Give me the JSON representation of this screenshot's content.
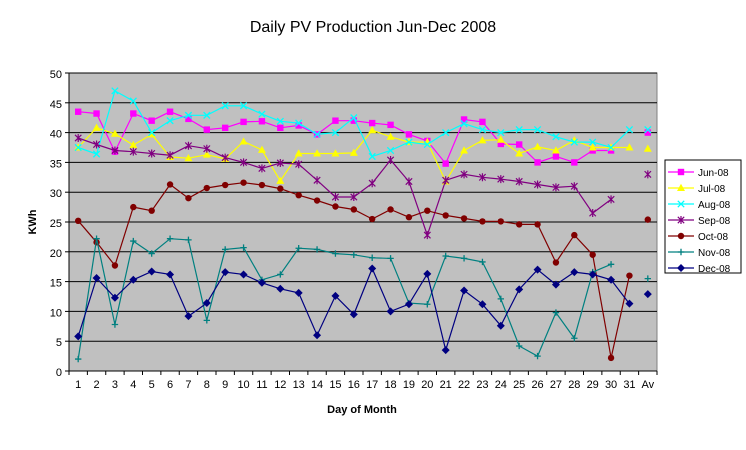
{
  "chart_data": {
    "type": "line",
    "title": "Daily PV Production Jun-Dec 2008",
    "xlabel": "Day of Month",
    "ylabel": "KWh",
    "categories": [
      "1",
      "2",
      "3",
      "4",
      "5",
      "6",
      "7",
      "8",
      "9",
      "10",
      "11",
      "12",
      "13",
      "14",
      "15",
      "16",
      "17",
      "18",
      "19",
      "20",
      "21",
      "22",
      "23",
      "24",
      "25",
      "26",
      "27",
      "28",
      "29",
      "30",
      "31",
      "Av"
    ],
    "ylim": [
      0,
      50
    ],
    "yticks": [
      0,
      5,
      10,
      15,
      20,
      25,
      30,
      35,
      40,
      45,
      50
    ],
    "grid": true,
    "plot_background": "#c0c0c0",
    "legend_position": "right",
    "series": [
      {
        "name": "Jun-08",
        "color": "#ff00ff",
        "marker": "square",
        "values": [
          43.5,
          43.2,
          36.8,
          43.2,
          42.0,
          43.5,
          42.3,
          40.5,
          40.8,
          41.8,
          41.9,
          40.8,
          41.2,
          39.7,
          42.0,
          42.0,
          41.6,
          41.3,
          39.7,
          38.6,
          34.8,
          42.2,
          41.8,
          38.1,
          38.0,
          35.0,
          36.0,
          35.0,
          37.0,
          37.0,
          null,
          40.0
        ]
      },
      {
        "name": "Jul-08",
        "color": "#ffff00",
        "marker": "triangle",
        "values": [
          37.5,
          40.8,
          39.8,
          37.9,
          39.7,
          35.9,
          35.7,
          36.3,
          35.6,
          38.5,
          37.1,
          31.9,
          36.5,
          36.5,
          36.5,
          36.6,
          40.4,
          39.3,
          38.4,
          38.4,
          31.8,
          37.0,
          38.7,
          38.8,
          36.5,
          37.6,
          37.0,
          38.7,
          37.5,
          37.5,
          37.5,
          37.3
        ]
      },
      {
        "name": "Aug-08",
        "color": "#00ffff",
        "marker": "x",
        "values": [
          37.5,
          36.4,
          47.0,
          45.3,
          40.0,
          42.0,
          42.9,
          42.9,
          44.5,
          44.5,
          43.1,
          41.9,
          41.6,
          39.7,
          40.0,
          42.5,
          36.0,
          37.0,
          38.4,
          38.0,
          40.0,
          41.5,
          40.5,
          40.0,
          40.5,
          40.5,
          39.3,
          38.4,
          38.4,
          37.5,
          40.5,
          40.5
        ]
      },
      {
        "name": "Sep-08",
        "color": "#800080",
        "marker": "star",
        "values": [
          39.1,
          38.0,
          37.0,
          36.8,
          36.5,
          36.2,
          37.8,
          37.3,
          35.8,
          35.0,
          34.0,
          34.9,
          34.7,
          32.0,
          29.2,
          29.2,
          31.5,
          35.4,
          31.8,
          22.8,
          32.0,
          33.0,
          32.5,
          32.2,
          31.8,
          31.3,
          30.8,
          31.0,
          26.5,
          28.8,
          null,
          33.0
        ]
      },
      {
        "name": "Oct-08",
        "color": "#800000",
        "marker": "circle",
        "values": [
          25.2,
          21.6,
          17.7,
          27.5,
          26.9,
          31.3,
          29.0,
          30.7,
          31.2,
          31.6,
          31.2,
          30.6,
          29.5,
          28.6,
          27.6,
          27.1,
          25.5,
          27.1,
          25.8,
          26.9,
          26.1,
          25.6,
          25.1,
          25.1,
          24.6,
          24.6,
          18.2,
          22.8,
          19.5,
          2.2,
          16.0,
          25.4
        ]
      },
      {
        "name": "Nov-08",
        "color": "#008080",
        "marker": "plus",
        "values": [
          2.0,
          22.2,
          7.8,
          21.8,
          19.7,
          22.2,
          22.0,
          8.5,
          20.4,
          20.7,
          15.3,
          16.2,
          20.6,
          20.4,
          19.7,
          19.5,
          19.0,
          18.9,
          11.4,
          11.2,
          19.3,
          18.9,
          18.3,
          12.1,
          4.2,
          2.5,
          9.8,
          5.5,
          16.6,
          17.9,
          null,
          15.5
        ]
      },
      {
        "name": "Dec-08",
        "color": "#000080",
        "marker": "diamond",
        "values": [
          5.8,
          15.6,
          12.3,
          15.3,
          16.7,
          16.2,
          9.2,
          11.4,
          16.6,
          16.2,
          14.8,
          13.8,
          13.1,
          6.0,
          12.6,
          9.5,
          17.2,
          10.0,
          11.2,
          16.3,
          3.5,
          13.5,
          11.2,
          7.6,
          13.7,
          17.0,
          14.5,
          16.6,
          16.2,
          15.3,
          11.3,
          12.9
        ]
      }
    ]
  }
}
